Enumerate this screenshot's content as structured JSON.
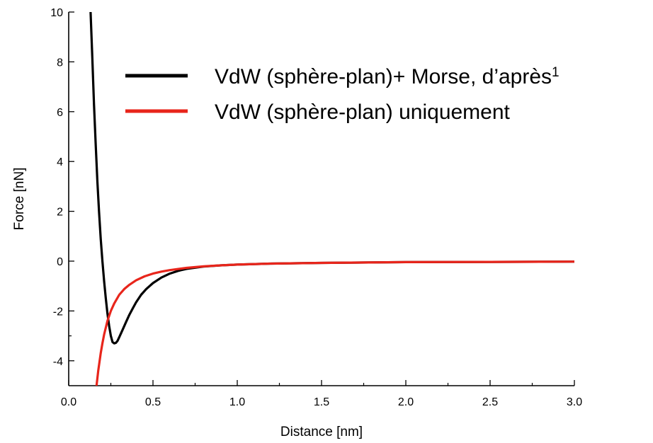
{
  "chart_data": {
    "type": "line",
    "xlabel": "Distance [nm]",
    "ylabel": "Force [nN]",
    "xlim": [
      0.0,
      3.0
    ],
    "ylim": [
      -5,
      10
    ],
    "x_ticks": [
      "0.0",
      "0.5",
      "1.0",
      "1.5",
      "2.0",
      "2.5",
      "3.0"
    ],
    "y_ticks": [
      "10",
      "8",
      "6",
      "4",
      "2",
      "0",
      "-2",
      "-4"
    ],
    "grid": false,
    "legend_position": "top-right",
    "series": [
      {
        "name": "VdW (sphère-plan)+ Morse, d’après",
        "name_superscript": "1",
        "color": "#000000",
        "x": [
          0.13,
          0.14,
          0.15,
          0.16,
          0.17,
          0.18,
          0.19,
          0.2,
          0.21,
          0.22,
          0.23,
          0.24,
          0.25,
          0.26,
          0.27,
          0.28,
          0.29,
          0.3,
          0.32,
          0.34,
          0.36,
          0.38,
          0.4,
          0.43,
          0.46,
          0.5,
          0.55,
          0.6,
          0.65,
          0.7,
          0.8,
          0.9,
          1.0,
          1.2,
          1.5,
          2.0,
          2.5,
          3.0
        ],
        "y": [
          10.0,
          8.2,
          6.3,
          4.7,
          3.2,
          2.0,
          0.9,
          0.0,
          -0.8,
          -1.5,
          -2.1,
          -2.6,
          -3.0,
          -3.25,
          -3.3,
          -3.28,
          -3.2,
          -3.05,
          -2.75,
          -2.45,
          -2.15,
          -1.9,
          -1.65,
          -1.35,
          -1.12,
          -0.88,
          -0.66,
          -0.5,
          -0.39,
          -0.31,
          -0.22,
          -0.17,
          -0.14,
          -0.1,
          -0.07,
          -0.04,
          -0.03,
          -0.02
        ]
      },
      {
        "name": "VdW (sphère-plan) uniquement",
        "color": "#e8251b",
        "x": [
          0.165,
          0.175,
          0.19,
          0.2,
          0.21,
          0.23,
          0.25,
          0.27,
          0.3,
          0.33,
          0.36,
          0.4,
          0.45,
          0.5,
          0.55,
          0.6,
          0.7,
          0.8,
          0.9,
          1.0,
          1.2,
          1.5,
          2.0,
          2.5,
          3.0
        ],
        "y": [
          -5.0,
          -4.4,
          -3.7,
          -3.3,
          -2.95,
          -2.4,
          -2.0,
          -1.7,
          -1.35,
          -1.12,
          -0.95,
          -0.77,
          -0.61,
          -0.5,
          -0.42,
          -0.36,
          -0.27,
          -0.21,
          -0.17,
          -0.14,
          -0.1,
          -0.07,
          -0.04,
          -0.03,
          -0.02
        ]
      }
    ]
  }
}
